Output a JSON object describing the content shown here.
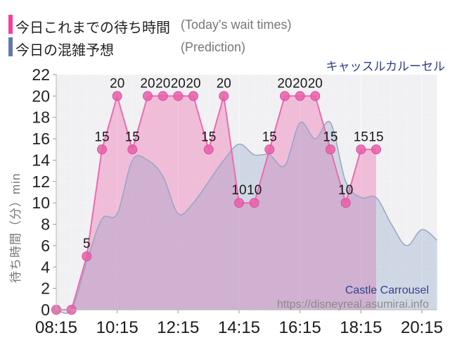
{
  "legend": {
    "today_label": "今日これまでの待ち時間",
    "today_sublabel": "(Today's wait times)",
    "prediction_label": "今日の混雑予想",
    "prediction_sublabel": "(Prediction)"
  },
  "title": "キャッスルカルーセル",
  "watermark": {
    "name": "Castle Carrousel",
    "url": "https://disneyreal.asumirai.info"
  },
  "colors": {
    "legend_pink": "#f93c9e",
    "legend_blue": "#6577ad",
    "pink_line": "#ee6ab0",
    "pink_fill": "rgba(238,106,176,0.38)",
    "marker_fill": "#e85fa9",
    "marker_stroke": "#d94f9c",
    "blue_line": "#98a6c2",
    "blue_fill": "rgba(117,143,184,0.26)",
    "plot_bg": "#f1f1f3",
    "grid": "rgba(255,255,255,0.9)",
    "axis": "#b5b5b5",
    "tick": "#999999",
    "tick_label": "#1a1a1a",
    "point_label": "#1a1a1a"
  },
  "chart_data": {
    "type": "line",
    "title": "キャッスルカルーセル (Castle Carrousel) wait times",
    "xlabel": "",
    "ylabel": "待ち時間（分）min",
    "ylim": [
      0,
      22
    ],
    "y_tick_step": 2,
    "y_tick_labels": [
      0,
      2,
      4,
      6,
      8,
      10,
      12,
      14,
      16,
      18,
      20,
      22
    ],
    "x_start": "08:15",
    "x_interval_minutes": 30,
    "x_total_slots": 25,
    "x_tick_labels": [
      "08:15",
      "10:15",
      "12:15",
      "14:15",
      "16:15",
      "18:15",
      "20:15"
    ],
    "grid": "on",
    "legend_position": "top-left",
    "series": [
      {
        "name": "今日これまでの待ち時間 (Today's wait times)",
        "style": "linear-area-with-points",
        "times": [
          "08:15",
          "08:45",
          "09:15",
          "09:45",
          "10:15",
          "10:45",
          "11:15",
          "11:45",
          "12:15",
          "12:45",
          "13:15",
          "13:45",
          "14:15",
          "14:45",
          "15:15",
          "15:45",
          "16:15",
          "16:45",
          "17:15",
          "17:45",
          "18:15",
          "18:45"
        ],
        "values": [
          0,
          0,
          5,
          15,
          20,
          15,
          20,
          20,
          20,
          20,
          15,
          20,
          10,
          10,
          15,
          20,
          20,
          20,
          15,
          10,
          15,
          15
        ]
      },
      {
        "name": "今日の混雑予想 (Prediction)",
        "style": "smooth-area",
        "times": [
          "08:15",
          "08:45",
          "09:15",
          "09:45",
          "10:15",
          "10:45",
          "11:15",
          "11:45",
          "12:15",
          "12:45",
          "13:15",
          "13:45",
          "14:15",
          "14:45",
          "15:15",
          "15:45",
          "16:15",
          "16:45",
          "17:15",
          "17:45",
          "18:15",
          "18:45",
          "19:15",
          "19:45",
          "20:15",
          "20:45"
        ],
        "values": [
          0,
          0,
          4.5,
          8.5,
          9,
          14,
          14,
          12.5,
          9,
          10,
          12,
          14,
          15.5,
          14.5,
          14.5,
          13.5,
          17.5,
          16,
          17.5,
          12,
          10.5,
          10.5,
          8,
          6,
          7.5,
          6.5
        ]
      }
    ]
  }
}
